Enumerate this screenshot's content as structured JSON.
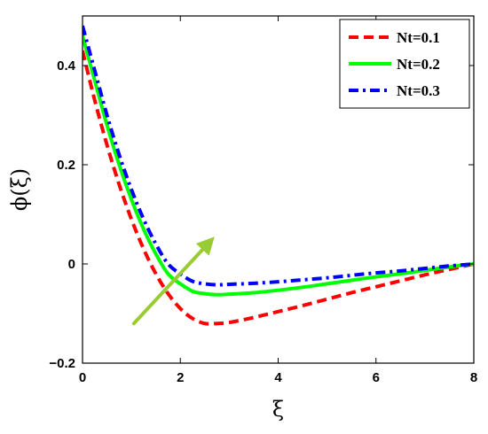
{
  "chart_data": {
    "type": "line",
    "xlabel": "ξ",
    "ylabel": "ϕ(ξ)",
    "xlim": [
      0,
      8
    ],
    "ylim": [
      -0.2,
      0.5
    ],
    "xticks": [
      0,
      2,
      4,
      6,
      8
    ],
    "yticks": [
      -0.2,
      0,
      0.2,
      0.4
    ],
    "xtick_labels": [
      "0",
      "2",
      "4",
      "6",
      "8"
    ],
    "ytick_labels": [
      "−0.2",
      "0",
      "0.2",
      "0.4"
    ],
    "grid": false,
    "legend_position": "top-right",
    "series": [
      {
        "name": "Nt=0.1",
        "color": "#ff0000",
        "style": "dashed",
        "x": [
          0,
          0.25,
          0.5,
          0.75,
          1.0,
          1.25,
          1.5,
          1.75,
          2.0,
          2.25,
          2.5,
          2.75,
          3.0,
          3.5,
          4.0,
          4.5,
          5.0,
          5.5,
          6.0,
          6.5,
          7.0,
          7.5,
          8.0
        ],
        "y": [
          0.43,
          0.33,
          0.24,
          0.16,
          0.09,
          0.03,
          -0.02,
          -0.06,
          -0.09,
          -0.11,
          -0.12,
          -0.12,
          -0.118,
          -0.108,
          -0.096,
          -0.084,
          -0.071,
          -0.058,
          -0.046,
          -0.034,
          -0.022,
          -0.011,
          0.0
        ]
      },
      {
        "name": "Nt=0.2",
        "color": "#00ff00",
        "style": "solid",
        "x": [
          0,
          0.25,
          0.5,
          0.75,
          1.0,
          1.25,
          1.5,
          1.75,
          2.0,
          2.25,
          2.5,
          2.75,
          3.0,
          3.5,
          4.0,
          4.5,
          5.0,
          5.5,
          6.0,
          6.5,
          7.0,
          7.5,
          8.0
        ],
        "y": [
          0.46,
          0.37,
          0.28,
          0.2,
          0.13,
          0.07,
          0.02,
          -0.02,
          -0.04,
          -0.055,
          -0.06,
          -0.062,
          -0.061,
          -0.058,
          -0.053,
          -0.047,
          -0.04,
          -0.033,
          -0.026,
          -0.02,
          -0.013,
          -0.006,
          0.0
        ]
      },
      {
        "name": "Nt=0.3",
        "color": "#0000ff",
        "style": "dashdot",
        "x": [
          0,
          0.25,
          0.5,
          0.75,
          1.0,
          1.25,
          1.5,
          1.75,
          2.0,
          2.25,
          2.5,
          2.75,
          3.0,
          3.5,
          4.0,
          4.5,
          5.0,
          5.5,
          6.0,
          6.5,
          7.0,
          7.5,
          8.0
        ],
        "y": [
          0.48,
          0.39,
          0.3,
          0.22,
          0.15,
          0.09,
          0.04,
          0.0,
          -0.02,
          -0.035,
          -0.04,
          -0.042,
          -0.041,
          -0.039,
          -0.036,
          -0.032,
          -0.028,
          -0.023,
          -0.018,
          -0.014,
          -0.009,
          -0.004,
          0.0
        ]
      }
    ],
    "annotation": {
      "type": "arrow",
      "color": "#99cc33",
      "from": [
        1.05,
        -0.12
      ],
      "to": [
        2.7,
        0.055
      ]
    }
  }
}
